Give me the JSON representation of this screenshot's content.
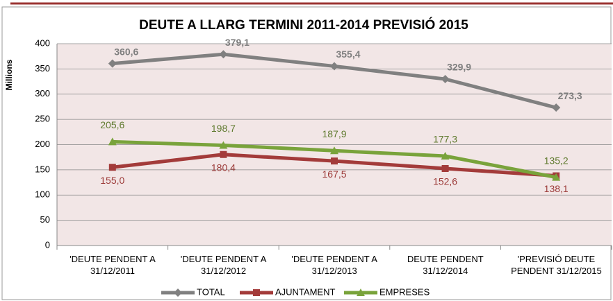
{
  "chart_data": {
    "type": "line",
    "title": "DEUTE A LLARG TERMINI 2011-2014 PREVISIÓ 2015",
    "y_label": "Millions",
    "categories": [
      "'DEUTE PENDENT A\n31/12/2011",
      "'DEUTE PENDENT A\n31/12/2012",
      "'DEUTE PENDENT A\n31/12/2013",
      "DEUTE PENDENT\n31/12/2014",
      "'PREVISIÓ DEUTE\nPENDENT 31/12/2015"
    ],
    "series": [
      {
        "name": "TOTAL",
        "color": "#808080",
        "label_color": "#7f7f7f",
        "marker": "diamond",
        "values": [
          360.6,
          379.1,
          355.4,
          329.9,
          273.3
        ],
        "value_labels": [
          "360,6",
          "379,1",
          "355,4",
          "329,9",
          "273,3"
        ]
      },
      {
        "name": "AJUNTAMENT",
        "color": "#a33b3a",
        "label_color": "#9c3a38",
        "marker": "square",
        "values": [
          155.0,
          180.4,
          167.5,
          152.6,
          138.1
        ],
        "value_labels": [
          "155,0",
          "180,4",
          "167,5",
          "152,6",
          "138,1"
        ]
      },
      {
        "name": "EMPRESES",
        "color": "#79a33b",
        "label_color": "#5f7a2e",
        "marker": "triangle",
        "values": [
          205.6,
          198.7,
          187.9,
          177.3,
          135.2
        ],
        "value_labels": [
          "205,6",
          "198,7",
          "187,9",
          "177,3",
          "135,2"
        ]
      }
    ],
    "ylim": [
      0,
      400
    ],
    "yticks": [
      0,
      50,
      100,
      150,
      200,
      250,
      300,
      350,
      400
    ],
    "grid": true,
    "legend": "bottom"
  }
}
